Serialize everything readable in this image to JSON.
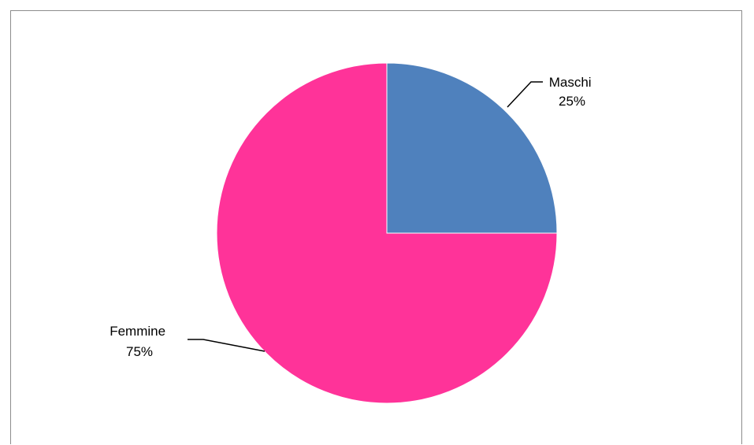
{
  "chart_data": {
    "type": "pie",
    "title": "",
    "start_angle_deg": 0,
    "direction": "clockwise",
    "slices": [
      {
        "label": "Maschi",
        "value": 25,
        "percent_label": "25%",
        "color": "#4f81bd"
      },
      {
        "label": "Femmine",
        "value": 75,
        "percent_label": "75%",
        "color": "#ff3399"
      }
    ],
    "legend": false
  }
}
